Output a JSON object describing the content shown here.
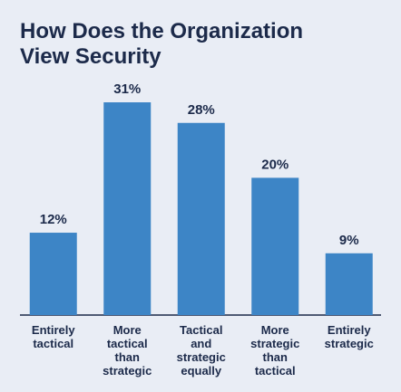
{
  "chart_data": {
    "type": "bar",
    "title": "How Does the Organization View Security",
    "categories": [
      "Entirely tactical",
      "More tactical than strategic",
      "Tactical and strategic equally",
      "More strategic than tactical",
      "Entirely strategic"
    ],
    "values": [
      12,
      31,
      28,
      20,
      9
    ],
    "value_labels": [
      "12%",
      "31%",
      "28%",
      "20%",
      "9%"
    ],
    "color": "#3d85c6"
  }
}
